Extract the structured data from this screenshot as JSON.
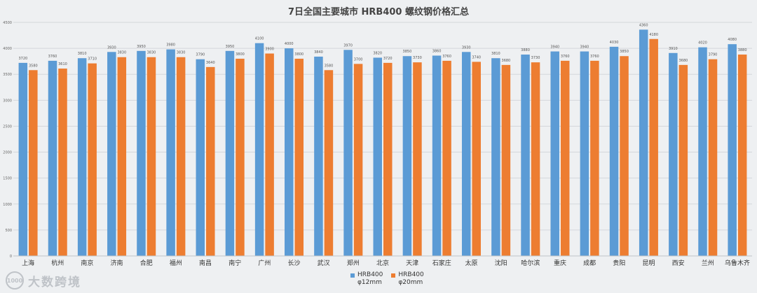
{
  "chart_data": {
    "type": "bar",
    "title": "7日全国主要城市 HRB400 螺纹钢价格汇总",
    "categories": [
      "上海",
      "杭州",
      "南京",
      "济南",
      "合肥",
      "福州",
      "南昌",
      "南宁",
      "广州",
      "长沙",
      "武汉",
      "郑州",
      "北京",
      "天津",
      "石家庄",
      "太原",
      "沈阳",
      "哈尔滨",
      "重庆",
      "成都",
      "贵阳",
      "昆明",
      "西安",
      "兰州",
      "乌鲁木齐"
    ],
    "series": [
      {
        "name": "HRB400 φ12mm",
        "name_line1": "HRB400",
        "name_line2": "φ12mm",
        "color": "#5b9bd5",
        "values": [
          3720,
          3760,
          3810,
          3930,
          3950,
          3980,
          3790,
          3950,
          4100,
          4000,
          3840,
          3970,
          3820,
          3850,
          3860,
          3930,
          3810,
          3880,
          3940,
          3940,
          4030,
          4360,
          3910,
          4020,
          4080
        ]
      },
      {
        "name": "HRB400 φ20mm",
        "name_line1": "HRB400",
        "name_line2": "φ20mm",
        "color": "#ed7d31",
        "values": [
          3580,
          3610,
          3710,
          3830,
          3830,
          3830,
          3640,
          3800,
          3900,
          3800,
          3580,
          3700,
          3720,
          3730,
          3760,
          3740,
          3680,
          3730,
          3760,
          3760,
          3850,
          4180,
          3680,
          3790,
          3880
        ]
      }
    ],
    "ylim": [
      0,
      4500
    ],
    "yticks": [
      0,
      500,
      1000,
      1500,
      2000,
      2500,
      3000,
      3500,
      4000,
      4500
    ],
    "grid": true,
    "legend_position": "bottom-center",
    "watermark_text": "大数跨境",
    "watermark_logo_text": "1000"
  }
}
